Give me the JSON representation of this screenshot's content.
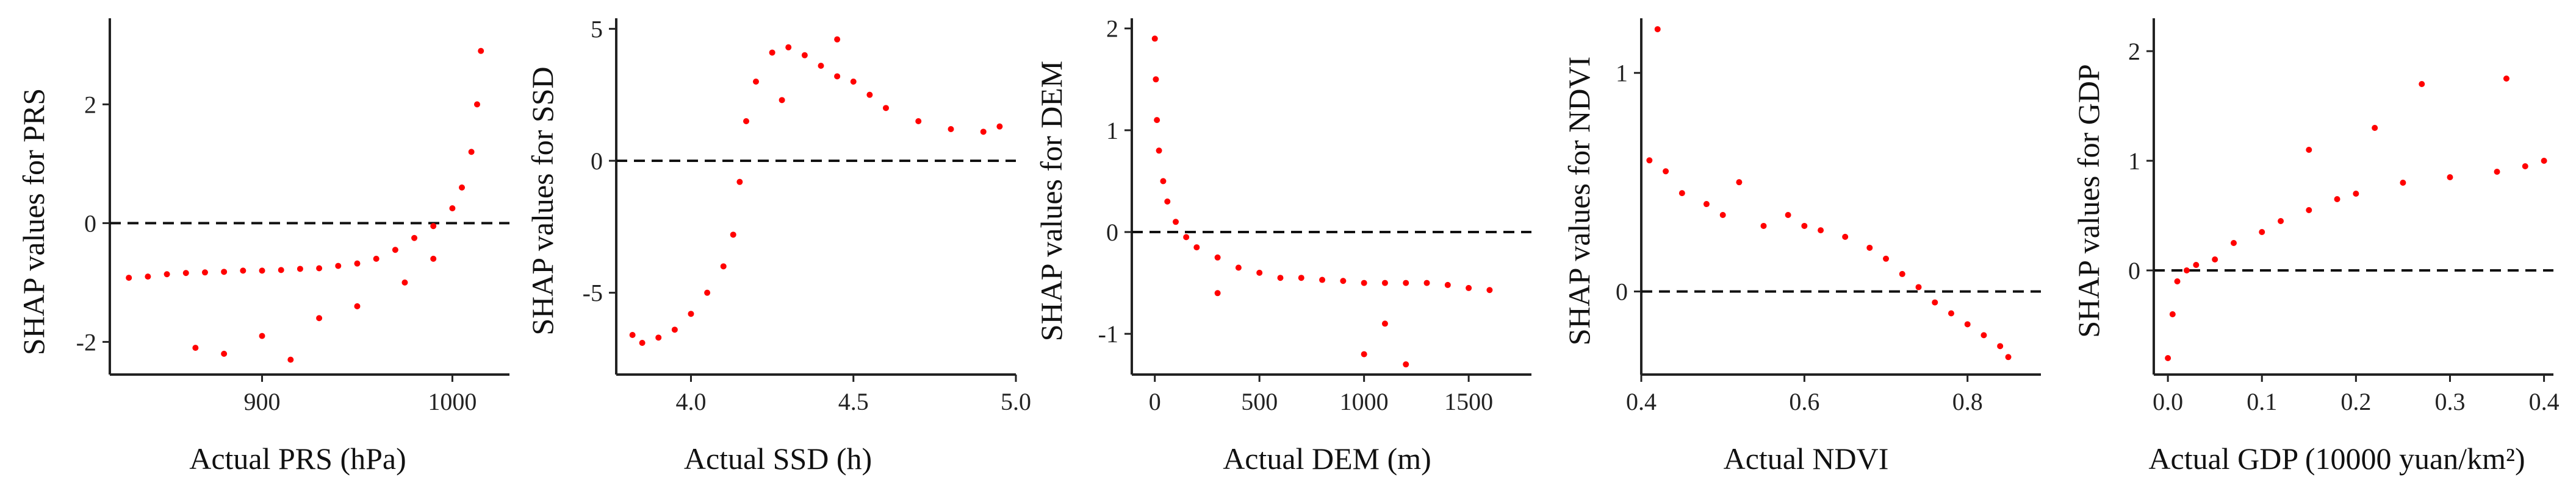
{
  "chart_data": [
    {
      "type": "scatter",
      "xlabel": "Actual PRS (hPa)",
      "ylabel": "SHAP values for PRS",
      "xlim": [
        820,
        1030
      ],
      "ylim": [
        -2.55,
        3.45
      ],
      "xticks": [
        900,
        1000
      ],
      "yticks": [
        -2,
        0,
        2
      ],
      "reference_line_y": 0,
      "color": "#ff0000",
      "points": [
        [
          830,
          -0.92
        ],
        [
          840,
          -0.9
        ],
        [
          850,
          -0.86
        ],
        [
          860,
          -0.84
        ],
        [
          870,
          -0.83
        ],
        [
          880,
          -0.82
        ],
        [
          890,
          -0.8
        ],
        [
          900,
          -0.8
        ],
        [
          910,
          -0.79
        ],
        [
          920,
          -0.77
        ],
        [
          930,
          -0.76
        ],
        [
          940,
          -0.72
        ],
        [
          950,
          -0.68
        ],
        [
          960,
          -0.6
        ],
        [
          970,
          -0.45
        ],
        [
          980,
          -0.25
        ],
        [
          990,
          -0.05
        ],
        [
          1000,
          0.25
        ],
        [
          1005,
          0.6
        ],
        [
          1010,
          1.2
        ],
        [
          1013,
          2.0
        ],
        [
          1015,
          2.9
        ],
        [
          865,
          -2.1
        ],
        [
          880,
          -2.2
        ],
        [
          900,
          -1.9
        ],
        [
          915,
          -2.3
        ],
        [
          930,
          -1.6
        ],
        [
          950,
          -1.4
        ],
        [
          975,
          -1.0
        ],
        [
          990,
          -0.6
        ]
      ]
    },
    {
      "type": "scatter",
      "xlabel": "Actual SSD (h)",
      "ylabel": "SHAP values for SSD",
      "xlim": [
        3.77,
        5.0
      ],
      "ylim": [
        -8.1,
        5.4
      ],
      "xticks": [
        4.0,
        4.5,
        5.0
      ],
      "xtick_labels": [
        "4.0",
        "4.5",
        "5.0"
      ],
      "yticks": [
        -5,
        0,
        5
      ],
      "reference_line_y": 0,
      "color": "#ff0000",
      "points": [
        [
          3.82,
          -6.6
        ],
        [
          3.85,
          -6.9
        ],
        [
          3.9,
          -6.7
        ],
        [
          3.95,
          -6.4
        ],
        [
          4.0,
          -5.8
        ],
        [
          4.05,
          -5.0
        ],
        [
          4.1,
          -4.0
        ],
        [
          4.13,
          -2.8
        ],
        [
          4.15,
          -0.8
        ],
        [
          4.17,
          1.5
        ],
        [
          4.2,
          3.0
        ],
        [
          4.25,
          4.1
        ],
        [
          4.3,
          4.3
        ],
        [
          4.35,
          4.0
        ],
        [
          4.4,
          3.6
        ],
        [
          4.45,
          3.2
        ],
        [
          4.5,
          3.0
        ],
        [
          4.55,
          2.5
        ],
        [
          4.6,
          2.0
        ],
        [
          4.7,
          1.5
        ],
        [
          4.8,
          1.2
        ],
        [
          4.9,
          1.1
        ],
        [
          4.95,
          1.3
        ],
        [
          4.28,
          2.3
        ],
        [
          4.45,
          4.6
        ]
      ]
    },
    {
      "type": "scatter",
      "xlabel": "Actual DEM (m)",
      "ylabel": "SHAP values for DEM",
      "xlim": [
        -110,
        1800
      ],
      "ylim": [
        -1.4,
        2.1
      ],
      "xticks": [
        0,
        500,
        1000,
        1500
      ],
      "yticks": [
        -1,
        0,
        1,
        2
      ],
      "reference_line_y": 0,
      "color": "#ff0000",
      "points": [
        [
          0,
          1.9
        ],
        [
          5,
          1.5
        ],
        [
          10,
          1.1
        ],
        [
          20,
          0.8
        ],
        [
          40,
          0.5
        ],
        [
          60,
          0.3
        ],
        [
          100,
          0.1
        ],
        [
          150,
          -0.05
        ],
        [
          200,
          -0.15
        ],
        [
          300,
          -0.25
        ],
        [
          400,
          -0.35
        ],
        [
          500,
          -0.4
        ],
        [
          600,
          -0.45
        ],
        [
          700,
          -0.45
        ],
        [
          800,
          -0.47
        ],
        [
          900,
          -0.48
        ],
        [
          1000,
          -0.5
        ],
        [
          1100,
          -0.5
        ],
        [
          1200,
          -0.5
        ],
        [
          1300,
          -0.5
        ],
        [
          1400,
          -0.52
        ],
        [
          1500,
          -0.55
        ],
        [
          1600,
          -0.57
        ],
        [
          1000,
          -1.2
        ],
        [
          1200,
          -1.3
        ],
        [
          1100,
          -0.9
        ],
        [
          300,
          -0.6
        ]
      ]
    },
    {
      "type": "scatter",
      "xlabel": "Actual NDVI",
      "ylabel": "SHAP values for NDVI",
      "xlim": [
        0.4,
        0.89
      ],
      "ylim": [
        -0.38,
        1.25
      ],
      "xticks": [
        0.4,
        0.6,
        0.8
      ],
      "xtick_labels": [
        "0.4",
        "0.6",
        "0.8"
      ],
      "yticks": [
        0,
        1
      ],
      "reference_line_y": 0,
      "color": "#ff0000",
      "points": [
        [
          0.42,
          1.2
        ],
        [
          0.41,
          0.6
        ],
        [
          0.43,
          0.55
        ],
        [
          0.45,
          0.45
        ],
        [
          0.48,
          0.4
        ],
        [
          0.5,
          0.35
        ],
        [
          0.52,
          0.5
        ],
        [
          0.55,
          0.3
        ],
        [
          0.58,
          0.35
        ],
        [
          0.6,
          0.3
        ],
        [
          0.62,
          0.28
        ],
        [
          0.65,
          0.25
        ],
        [
          0.68,
          0.2
        ],
        [
          0.7,
          0.15
        ],
        [
          0.72,
          0.08
        ],
        [
          0.74,
          0.02
        ],
        [
          0.76,
          -0.05
        ],
        [
          0.78,
          -0.1
        ],
        [
          0.8,
          -0.15
        ],
        [
          0.82,
          -0.2
        ],
        [
          0.84,
          -0.25
        ],
        [
          0.85,
          -0.3
        ]
      ]
    },
    {
      "type": "scatter",
      "xlabel": "Actual GDP (10000 yuan/km²)",
      "ylabel": "SHAP values for GDP",
      "xlim": [
        -0.015,
        0.41
      ],
      "ylim": [
        -0.95,
        2.3
      ],
      "xticks": [
        0.0,
        0.1,
        0.2,
        0.3,
        0.4
      ],
      "xtick_labels": [
        "0.0",
        "0.1",
        "0.2",
        "0.3",
        "0.4"
      ],
      "yticks": [
        0,
        1,
        2
      ],
      "reference_line_y": 0,
      "color": "#ff0000",
      "points": [
        [
          0.0,
          -0.8
        ],
        [
          0.005,
          -0.4
        ],
        [
          0.01,
          -0.1
        ],
        [
          0.02,
          0.0
        ],
        [
          0.03,
          0.05
        ],
        [
          0.05,
          0.1
        ],
        [
          0.07,
          0.25
        ],
        [
          0.1,
          0.35
        ],
        [
          0.12,
          0.45
        ],
        [
          0.15,
          0.55
        ],
        [
          0.18,
          0.65
        ],
        [
          0.2,
          0.7
        ],
        [
          0.25,
          0.8
        ],
        [
          0.3,
          0.85
        ],
        [
          0.35,
          0.9
        ],
        [
          0.38,
          0.95
        ],
        [
          0.4,
          1.0
        ],
        [
          0.27,
          1.7
        ],
        [
          0.36,
          1.75
        ],
        [
          0.22,
          1.3
        ],
        [
          0.15,
          1.1
        ]
      ]
    }
  ]
}
